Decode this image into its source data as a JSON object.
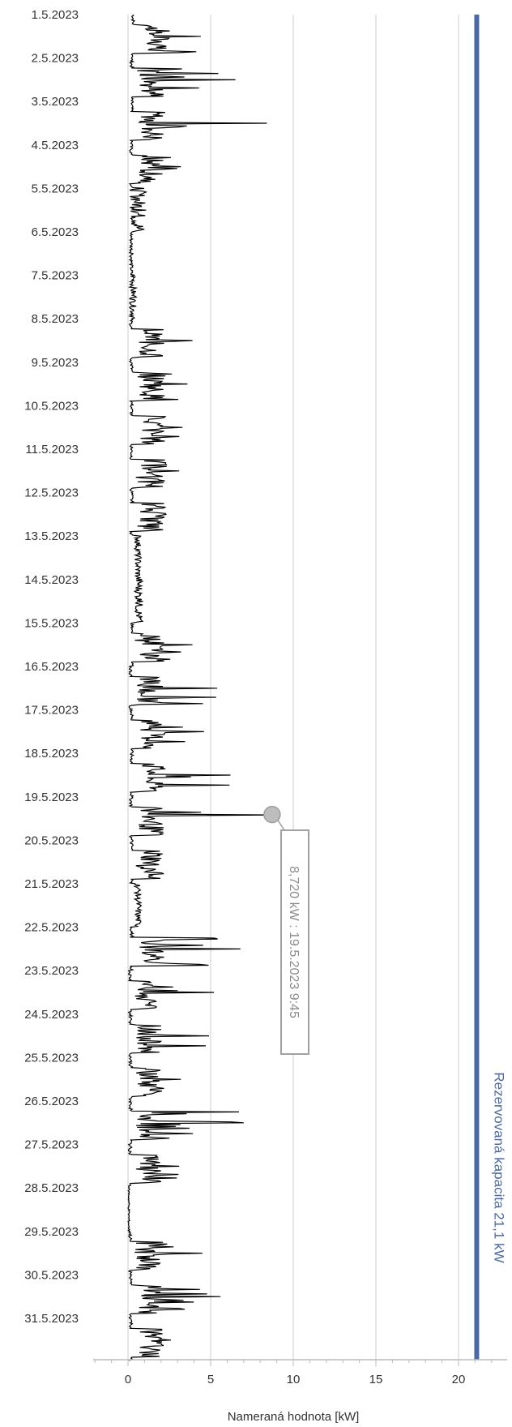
{
  "chart_data": {
    "type": "line",
    "orientation": "vertical-time",
    "xlabel": "Nameraná hodnota [kW]",
    "xlim": [
      -2,
      22.5
    ],
    "x_ticks": [
      0,
      5,
      10,
      15,
      20
    ],
    "x_tick_labels": [
      "0",
      "5",
      "10",
      "15",
      "20"
    ],
    "grid": true,
    "date_labels": [
      "1.5.2023",
      "2.5.2023",
      "3.5.2023",
      "4.5.2023",
      "5.5.2023",
      "6.5.2023",
      "7.5.2023",
      "8.5.2023",
      "9.5.2023",
      "10.5.2023",
      "11.5.2023",
      "12.5.2023",
      "13.5.2023",
      "14.5.2023",
      "15.5.2023",
      "16.5.2023",
      "17.5.2023",
      "18.5.2023",
      "19.5.2023",
      "20.5.2023",
      "21.5.2023",
      "22.5.2023",
      "23.5.2023",
      "24.5.2023",
      "25.5.2023",
      "26.5.2023",
      "27.5.2023",
      "28.5.2023",
      "29.5.2023",
      "30.5.2023",
      "31.5.2023"
    ],
    "reference_line": {
      "value": 21.1,
      "label": "Rezervovaná kapacita 21,1 kW",
      "color": "#4a6aa5"
    },
    "highlight": {
      "value": 8.72,
      "day": 19,
      "hour": 9.75,
      "label": "8,720 kW : 19.5.2023 9:45"
    },
    "series_color": "#000000",
    "daily_profile": [
      {
        "day": 1,
        "base": 0.7,
        "peak": 4.4
      },
      {
        "day": 2,
        "base": 0.4,
        "peak": 6.5
      },
      {
        "day": 3,
        "base": 0.4,
        "peak": 8.4
      },
      {
        "day": 4,
        "base": 0.3,
        "peak": 3.2
      },
      {
        "day": 5,
        "base": 0.1,
        "peak": 1.1
      },
      {
        "day": 6,
        "base": 0.1,
        "peak": 0.3
      },
      {
        "day": 7,
        "base": 0.1,
        "peak": 0.5
      },
      {
        "day": 8,
        "base": 0.3,
        "peak": 3.9
      },
      {
        "day": 9,
        "base": 0.4,
        "peak": 3.6
      },
      {
        "day": 10,
        "base": 0.4,
        "peak": 3.3
      },
      {
        "day": 11,
        "base": 0.4,
        "peak": 3.1
      },
      {
        "day": 12,
        "base": 0.4,
        "peak": 2.3
      },
      {
        "day": 13,
        "base": 0.4,
        "peak": 0.8
      },
      {
        "day": 14,
        "base": 0.4,
        "peak": 0.9
      },
      {
        "day": 15,
        "base": 0.4,
        "peak": 3.9
      },
      {
        "day": 16,
        "base": 0.2,
        "peak": 5.4
      },
      {
        "day": 17,
        "base": 0.4,
        "peak": 4.6
      },
      {
        "day": 18,
        "base": 0.4,
        "peak": 6.2
      },
      {
        "day": 19,
        "base": 0.3,
        "peak": 8.72
      },
      {
        "day": 20,
        "base": 0.4,
        "peak": 1.4
      },
      {
        "day": 21,
        "base": 0.4,
        "peak": 0.8
      },
      {
        "day": 22,
        "base": 0.4,
        "peak": 6.8
      },
      {
        "day": 23,
        "base": 0.1,
        "peak": 5.2
      },
      {
        "day": 24,
        "base": 0.2,
        "peak": 4.9
      },
      {
        "day": 25,
        "base": 0.2,
        "peak": 3.2
      },
      {
        "day": 26,
        "base": 0.2,
        "peak": 7.0
      },
      {
        "day": 27,
        "base": 0.1,
        "peak": 3.1
      },
      {
        "day": 28,
        "base": 0.0,
        "peak": 0.1
      },
      {
        "day": 29,
        "base": 0.1,
        "peak": 4.5
      },
      {
        "day": 30,
        "base": 0.2,
        "peak": 5.6
      },
      {
        "day": 31,
        "base": 0.3,
        "peak": 2.6
      }
    ]
  }
}
